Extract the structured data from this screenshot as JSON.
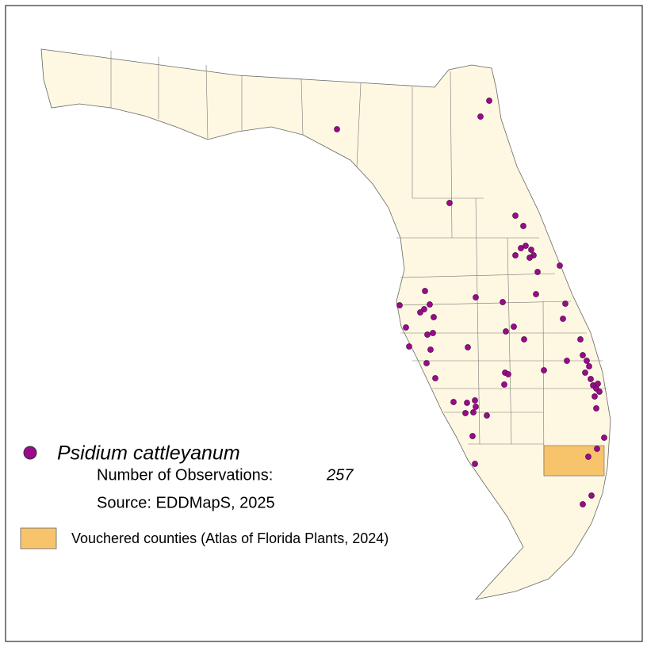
{
  "legend": {
    "species": "Psidium cattleyanum",
    "observations_label": "Number of Observations:",
    "observations": 257,
    "source": "Source: EDDMapS, 2025",
    "vouchered": "Vouchered counties (Atlas of Florida Plants, 2024)"
  }
}
